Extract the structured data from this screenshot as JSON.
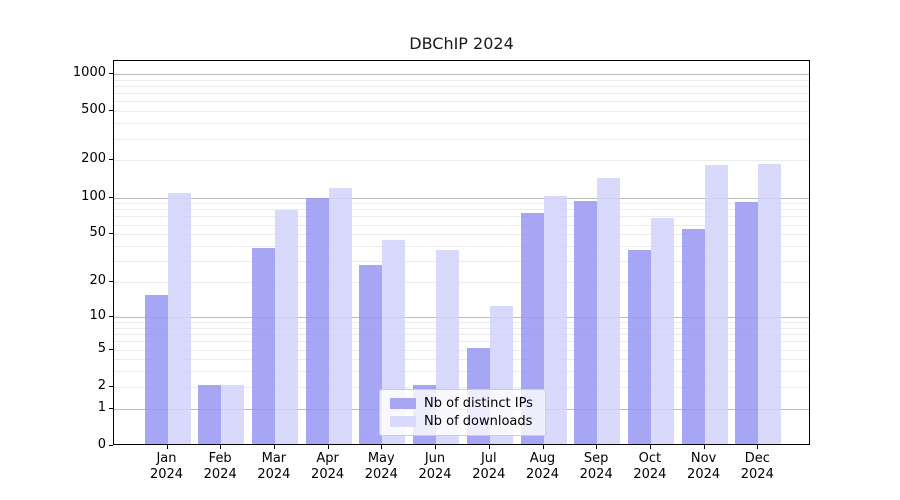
{
  "title": "DBChIP 2024",
  "chart_data": {
    "type": "bar",
    "title": "DBChIP 2024",
    "scale": "log1p",
    "grid": "on",
    "legend_position": "lower center",
    "ylim": [
      0,
      1270
    ],
    "y_ticks": [
      0,
      1,
      2,
      5,
      10,
      20,
      50,
      100,
      200,
      500,
      1000
    ],
    "x_categories": [
      "Jan 2024",
      "Feb 2024",
      "Mar 2024",
      "Apr 2024",
      "May 2024",
      "Jun 2024",
      "Jul 2024",
      "Aug 2024",
      "Sep 2024",
      "Oct 2024",
      "Nov 2024",
      "Dec 2024"
    ],
    "series": [
      {
        "name": "Nb of distinct IPs",
        "color": "#9696f3",
        "legend_color": "#a6a6f4",
        "values": [
          15,
          2,
          37,
          95,
          27,
          2,
          5,
          72,
          90,
          36,
          53,
          88
        ]
      },
      {
        "name": "Nb of downloads",
        "color": "#d2d2fa",
        "legend_color": "#d9d9fb",
        "values": [
          105,
          2,
          76,
          115,
          43,
          36,
          12,
          100,
          140,
          66,
          178,
          181
        ]
      }
    ],
    "colors": {
      "major_grid": "#bbbbbb",
      "minor_grid": "#ebebeb",
      "frame": "#000000"
    }
  }
}
